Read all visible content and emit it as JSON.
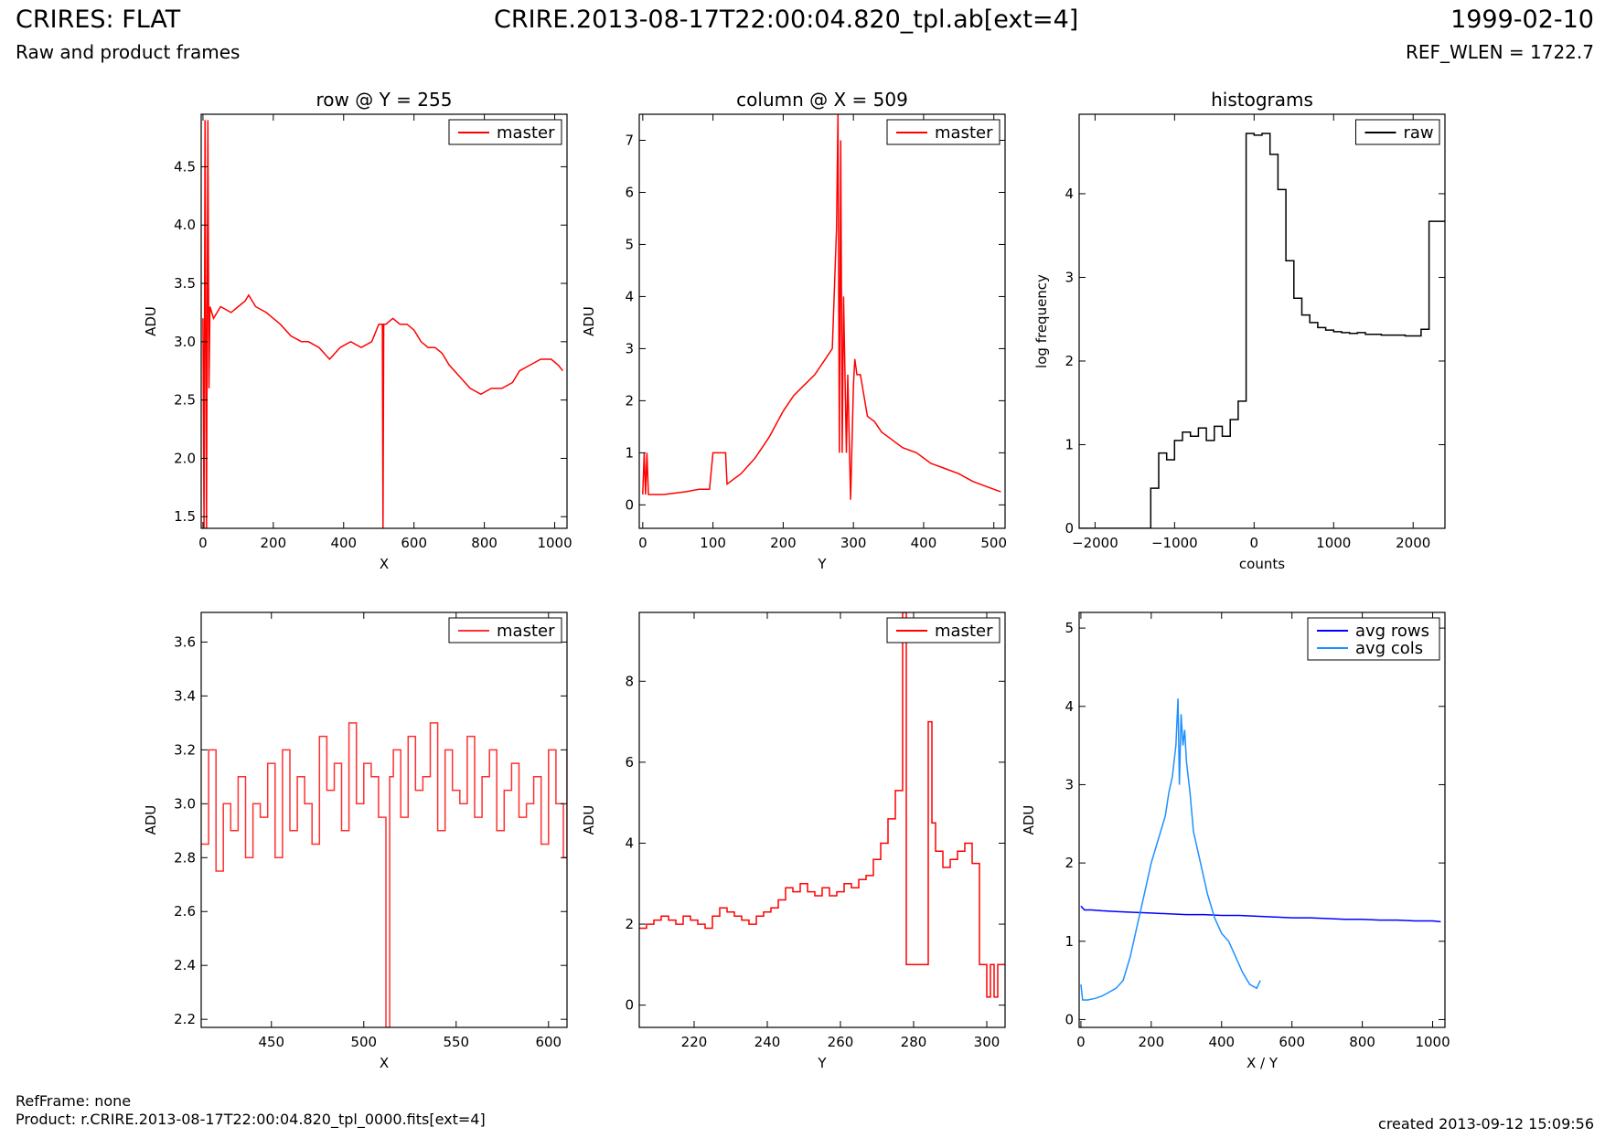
{
  "header": {
    "title_left": "CRIRES: FLAT",
    "title_center": "CRIRE.2013-08-17T22:00:04.820_tpl.ab[ext=4]",
    "title_right": "1999-02-10",
    "subtitle_left": "Raw and product frames",
    "subtitle_right": "REF_WLEN = 1722.7"
  },
  "footer": {
    "refframe": "RefFrame: none",
    "product": "Product: r.CRIRE.2013-08-17T22:00:04.820_tpl_0000.fits[ext=4]",
    "created": "created 2013-09-12 15:09:56"
  },
  "chart_data": [
    {
      "type": "line",
      "title": "row @ Y = 255",
      "xlabel": "X",
      "ylabel": "ADU",
      "xlim": [
        -5,
        1035
      ],
      "ylim": [
        1.4,
        4.95
      ],
      "xticks": [
        0,
        200,
        400,
        600,
        800,
        1000
      ],
      "yticks": [
        1.5,
        2.0,
        2.5,
        3.0,
        3.5,
        4.0,
        4.5
      ],
      "ytick_decimals": 1,
      "legend": "top-right",
      "series": [
        {
          "name": "master",
          "color": "#ff0000",
          "step": false,
          "x": [
            0,
            3,
            6,
            10,
            14,
            17,
            20,
            30,
            50,
            80,
            100,
            120,
            130,
            150,
            180,
            200,
            220,
            250,
            280,
            300,
            330,
            360,
            390,
            420,
            450,
            480,
            500,
            510,
            512,
            514,
            520,
            540,
            560,
            580,
            600,
            620,
            640,
            660,
            680,
            700,
            730,
            760,
            790,
            820,
            850,
            880,
            900,
            930,
            960,
            990,
            1010,
            1023
          ],
          "y": [
            3.2,
            1.4,
            4.9,
            1.4,
            4.9,
            2.6,
            3.3,
            3.2,
            3.3,
            3.25,
            3.3,
            3.35,
            3.4,
            3.3,
            3.25,
            3.2,
            3.15,
            3.05,
            3.0,
            3.0,
            2.95,
            2.85,
            2.95,
            3.0,
            2.95,
            3.0,
            3.15,
            3.15,
            1.4,
            3.15,
            3.15,
            3.2,
            3.15,
            3.15,
            3.1,
            3.0,
            2.95,
            2.95,
            2.9,
            2.8,
            2.7,
            2.6,
            2.55,
            2.6,
            2.6,
            2.65,
            2.75,
            2.8,
            2.85,
            2.85,
            2.8,
            2.75
          ]
        }
      ]
    },
    {
      "type": "line",
      "title": "column @ X = 509",
      "xlabel": "Y",
      "ylabel": "ADU",
      "xlim": [
        -5,
        516
      ],
      "ylim": [
        -0.45,
        7.5
      ],
      "xticks": [
        0,
        100,
        200,
        300,
        400,
        500
      ],
      "yticks": [
        0,
        1,
        2,
        3,
        4,
        5,
        6,
        7
      ],
      "ytick_decimals": 0,
      "legend": "top-right",
      "series": [
        {
          "name": "master",
          "color": "#ff0000",
          "step": false,
          "x": [
            0,
            2,
            4,
            6,
            8,
            10,
            30,
            60,
            80,
            95,
            100,
            102,
            118,
            120,
            140,
            160,
            180,
            200,
            215,
            230,
            245,
            260,
            270,
            276,
            278,
            280,
            282,
            284,
            286,
            290,
            292,
            296,
            300,
            302,
            305,
            310,
            320,
            330,
            340,
            350,
            370,
            390,
            410,
            430,
            450,
            470,
            490,
            510
          ],
          "y": [
            0.2,
            1.0,
            0.2,
            1.0,
            0.2,
            0.2,
            0.2,
            0.25,
            0.3,
            0.3,
            1.0,
            1.0,
            1.0,
            0.4,
            0.6,
            0.9,
            1.3,
            1.8,
            2.1,
            2.3,
            2.5,
            2.8,
            3.0,
            5.3,
            7.5,
            1.0,
            7.0,
            1.0,
            4.0,
            1.0,
            2.5,
            0.1,
            2.3,
            2.8,
            2.5,
            2.5,
            1.7,
            1.6,
            1.4,
            1.3,
            1.1,
            1.0,
            0.8,
            0.7,
            0.6,
            0.45,
            0.35,
            0.25
          ]
        }
      ]
    },
    {
      "type": "line",
      "title": "histograms",
      "xlabel": "counts",
      "ylabel": "log frequency",
      "xlim": [
        -2200,
        2400
      ],
      "ylim": [
        0,
        4.95
      ],
      "xticks": [
        -2000,
        -1000,
        0,
        1000,
        2000
      ],
      "xtick_labels": [
        "−2000",
        "−1000",
        "0",
        "1000",
        "2000"
      ],
      "yticks": [
        0,
        1,
        2,
        3,
        4
      ],
      "ytick_decimals": 0,
      "legend": "top-right",
      "series": [
        {
          "name": "raw",
          "color": "#000000",
          "step": true,
          "x": [
            -2200,
            -1300,
            -1200,
            -1100,
            -1000,
            -900,
            -800,
            -700,
            -600,
            -500,
            -400,
            -300,
            -200,
            -100,
            0,
            100,
            200,
            300,
            400,
            500,
            600,
            700,
            800,
            900,
            1000,
            1100,
            1200,
            1300,
            1400,
            1500,
            1600,
            1700,
            1800,
            1900,
            2000,
            2100,
            2200,
            2300,
            2400
          ],
          "y": [
            0,
            0.48,
            0.9,
            0.82,
            1.05,
            1.15,
            1.1,
            1.2,
            1.05,
            1.22,
            1.1,
            1.3,
            1.52,
            4.72,
            4.7,
            4.72,
            4.47,
            4.05,
            3.2,
            2.75,
            2.55,
            2.46,
            2.4,
            2.37,
            2.35,
            2.34,
            2.33,
            2.34,
            2.32,
            2.32,
            2.31,
            2.31,
            2.31,
            2.3,
            2.3,
            2.38,
            3.67,
            3.67,
            3.67
          ]
        }
      ]
    },
    {
      "type": "line",
      "title": "",
      "xlabel": "X",
      "ylabel": "ADU",
      "xlim": [
        412,
        610
      ],
      "ylim": [
        2.17,
        3.71
      ],
      "xticks": [
        450,
        500,
        550,
        600
      ],
      "yticks": [
        2.2,
        2.4,
        2.6,
        2.8,
        3.0,
        3.2,
        3.4,
        3.6
      ],
      "ytick_decimals": 1,
      "legend": "top-right",
      "series": [
        {
          "name": "master",
          "color": "#ff3030",
          "step": true,
          "x": [
            412,
            416,
            420,
            424,
            428,
            432,
            436,
            440,
            444,
            448,
            452,
            456,
            460,
            464,
            468,
            472,
            476,
            480,
            484,
            488,
            492,
            496,
            500,
            504,
            508,
            512,
            514,
            516,
            520,
            524,
            528,
            532,
            536,
            540,
            544,
            548,
            552,
            556,
            560,
            564,
            568,
            572,
            576,
            580,
            584,
            588,
            592,
            596,
            600,
            604,
            608,
            610
          ],
          "y": [
            2.85,
            3.2,
            2.75,
            3.0,
            2.9,
            3.1,
            2.8,
            3.0,
            2.95,
            3.15,
            2.8,
            3.2,
            2.9,
            3.1,
            3.0,
            2.85,
            3.25,
            3.05,
            3.15,
            2.9,
            3.3,
            3.0,
            3.15,
            3.1,
            2.95,
            2.17,
            3.1,
            3.2,
            2.95,
            3.25,
            3.05,
            3.1,
            3.3,
            2.9,
            3.2,
            3.05,
            3.0,
            3.25,
            2.95,
            3.1,
            3.2,
            2.9,
            3.05,
            3.15,
            2.95,
            3.0,
            3.1,
            2.85,
            3.2,
            3.0,
            2.8,
            3.2
          ]
        }
      ]
    },
    {
      "type": "line",
      "title": "",
      "xlabel": "Y",
      "ylabel": "ADU",
      "xlim": [
        205,
        305
      ],
      "ylim": [
        -0.55,
        9.7
      ],
      "xticks": [
        220,
        240,
        260,
        280,
        300
      ],
      "yticks": [
        0,
        2,
        4,
        6,
        8
      ],
      "ytick_decimals": 0,
      "legend": "top-right",
      "series": [
        {
          "name": "master",
          "color": "#ff0000",
          "step": true,
          "x": [
            205,
            207,
            209,
            211,
            213,
            215,
            217,
            219,
            221,
            223,
            225,
            227,
            229,
            231,
            233,
            235,
            237,
            239,
            241,
            243,
            245,
            247,
            249,
            251,
            253,
            255,
            257,
            259,
            261,
            263,
            265,
            267,
            269,
            271,
            273,
            275,
            277,
            278,
            280,
            283,
            284,
            285,
            286,
            288,
            290,
            292,
            294,
            296,
            298,
            300,
            301,
            302,
            303,
            304,
            305
          ],
          "y": [
            1.9,
            2.0,
            2.1,
            2.2,
            2.1,
            2.0,
            2.2,
            2.1,
            2.0,
            1.9,
            2.2,
            2.4,
            2.3,
            2.2,
            2.1,
            2.0,
            2.2,
            2.3,
            2.4,
            2.6,
            2.9,
            2.8,
            3.0,
            2.8,
            2.7,
            2.9,
            2.7,
            2.8,
            3.0,
            2.9,
            3.1,
            3.2,
            3.6,
            4.0,
            4.6,
            5.3,
            9.7,
            1.0,
            1.0,
            1.0,
            7.0,
            4.5,
            3.8,
            3.4,
            3.6,
            3.8,
            4.0,
            3.5,
            1.0,
            0.2,
            1.0,
            0.2,
            1.0,
            1.0,
            1.0
          ]
        }
      ]
    },
    {
      "type": "line",
      "title": "",
      "xlabel": "X / Y",
      "ylabel": "ADU",
      "xlim": [
        -5,
        1035
      ],
      "ylim": [
        -0.1,
        5.2
      ],
      "xticks": [
        0,
        200,
        400,
        600,
        800,
        1000
      ],
      "yticks": [
        0,
        1,
        2,
        3,
        4,
        5
      ],
      "ytick_decimals": 0,
      "legend": "top-right",
      "series": [
        {
          "name": "avg rows",
          "color": "#0000ff",
          "step": false,
          "x": [
            0,
            10,
            30,
            60,
            100,
            150,
            200,
            250,
            300,
            350,
            400,
            450,
            500,
            550,
            600,
            650,
            700,
            750,
            800,
            850,
            900,
            950,
            1000,
            1023
          ],
          "y": [
            1.45,
            1.4,
            1.4,
            1.39,
            1.38,
            1.37,
            1.36,
            1.35,
            1.34,
            1.34,
            1.33,
            1.33,
            1.32,
            1.31,
            1.3,
            1.3,
            1.29,
            1.28,
            1.28,
            1.27,
            1.27,
            1.26,
            1.26,
            1.25
          ]
        },
        {
          "name": "avg cols",
          "color": "#1e90ff",
          "step": false,
          "x": [
            0,
            5,
            20,
            40,
            60,
            80,
            100,
            120,
            140,
            160,
            180,
            200,
            220,
            240,
            250,
            260,
            270,
            276,
            280,
            285,
            290,
            295,
            300,
            310,
            320,
            340,
            360,
            380,
            400,
            420,
            440,
            460,
            480,
            500,
            510
          ],
          "y": [
            0.45,
            0.25,
            0.25,
            0.27,
            0.3,
            0.35,
            0.4,
            0.5,
            0.8,
            1.2,
            1.6,
            2.0,
            2.3,
            2.6,
            2.9,
            3.1,
            3.5,
            4.1,
            3.0,
            3.9,
            3.5,
            3.7,
            3.3,
            2.9,
            2.4,
            2.0,
            1.6,
            1.3,
            1.1,
            1.0,
            0.8,
            0.6,
            0.45,
            0.4,
            0.5
          ]
        }
      ]
    }
  ]
}
